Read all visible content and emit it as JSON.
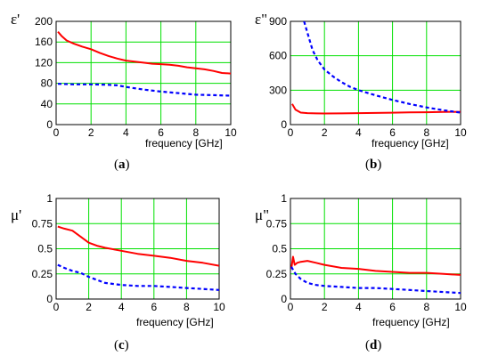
{
  "chart_data": [
    {
      "id": "a",
      "type": "line",
      "ylabel": "ε'",
      "xlabel": "frequency [GHz]",
      "caption_letter": "a",
      "xlim": [
        0,
        10
      ],
      "ylim": [
        0,
        200
      ],
      "xticks": [
        0,
        2,
        4,
        6,
        8,
        10
      ],
      "yticks": [
        0,
        40,
        80,
        120,
        160,
        200
      ],
      "ytick_labels": [
        "0",
        "40",
        "80",
        "120",
        "160",
        "200"
      ],
      "grid": true,
      "series": [
        {
          "color": "#ff0000",
          "style": "solid",
          "x": [
            0.1,
            0.3,
            0.6,
            1.0,
            1.5,
            2.0,
            2.5,
            3.0,
            3.5,
            4.0,
            4.5,
            5.0,
            5.5,
            6.0,
            6.5,
            7.0,
            7.5,
            8.0,
            8.5,
            9.0,
            9.5,
            10.0
          ],
          "y": [
            180,
            172,
            163,
            157,
            151,
            146,
            139,
            133,
            128,
            124,
            122,
            120,
            118,
            117,
            116,
            114,
            111,
            109,
            107,
            104,
            100,
            99
          ]
        },
        {
          "color": "#0000ff",
          "style": "dashed",
          "x": [
            0.1,
            1.0,
            2.0,
            3.0,
            3.5,
            4.0,
            5.0,
            6.0,
            7.0,
            8.0,
            9.0,
            10.0
          ],
          "y": [
            79,
            78,
            78,
            77,
            76,
            73,
            68,
            64,
            61,
            58,
            57,
            56
          ]
        }
      ]
    },
    {
      "id": "b",
      "type": "line",
      "ylabel": "ε\"",
      "xlabel": "frequency [GHz]",
      "caption_letter": "b",
      "xlim": [
        0,
        10
      ],
      "ylim": [
        0,
        900
      ],
      "xticks": [
        0,
        2,
        4,
        6,
        8,
        10
      ],
      "yticks": [
        0,
        300,
        600,
        900
      ],
      "ytick_labels": [
        "0",
        "300",
        "600",
        "900"
      ],
      "grid": true,
      "series": [
        {
          "color": "#ff0000",
          "style": "solid",
          "x": [
            0.1,
            0.3,
            0.6,
            1.0,
            1.5,
            2.0,
            3.0,
            4.0,
            5.0,
            6.0,
            7.0,
            8.0,
            9.0,
            10.0
          ],
          "y": [
            180,
            130,
            105,
            100,
            98,
            97,
            98,
            100,
            102,
            104,
            106,
            108,
            110,
            112
          ]
        },
        {
          "color": "#0000ff",
          "style": "dashed",
          "x": [
            0.8,
            1.0,
            1.3,
            1.6,
            2.0,
            2.5,
            3.0,
            3.5,
            4.0,
            5.0,
            6.0,
            7.0,
            8.0,
            9.0,
            10.0
          ],
          "y": [
            900,
            800,
            650,
            560,
            480,
            420,
            370,
            330,
            300,
            255,
            215,
            180,
            150,
            125,
            105
          ]
        }
      ]
    },
    {
      "id": "c",
      "type": "line",
      "ylabel": "μ'",
      "xlabel": "frequency [GHz]",
      "caption_letter": "c",
      "xlim": [
        0,
        10
      ],
      "ylim": [
        0,
        1
      ],
      "xticks": [
        0,
        2,
        4,
        6,
        8,
        10
      ],
      "yticks": [
        0,
        0.25,
        0.5,
        0.75,
        1
      ],
      "ytick_labels": [
        "0",
        "0.25",
        "0.5",
        "0.75",
        "1"
      ],
      "grid": true,
      "series": [
        {
          "color": "#ff0000",
          "style": "solid",
          "x": [
            0.1,
            0.5,
            1.0,
            1.5,
            2.0,
            2.5,
            3.0,
            4.0,
            5.0,
            6.0,
            7.0,
            8.0,
            9.0,
            10.0
          ],
          "y": [
            0.72,
            0.7,
            0.68,
            0.62,
            0.56,
            0.53,
            0.51,
            0.48,
            0.45,
            0.43,
            0.41,
            0.38,
            0.36,
            0.33
          ]
        },
        {
          "color": "#0000ff",
          "style": "dashed",
          "x": [
            0.1,
            0.5,
            1.0,
            1.5,
            2.0,
            2.5,
            3.0,
            4.0,
            5.0,
            6.0,
            7.0,
            8.0,
            9.0,
            10.0
          ],
          "y": [
            0.34,
            0.31,
            0.28,
            0.26,
            0.22,
            0.19,
            0.16,
            0.14,
            0.13,
            0.13,
            0.12,
            0.11,
            0.1,
            0.09
          ]
        }
      ]
    },
    {
      "id": "d",
      "type": "line",
      "ylabel": "μ\"",
      "xlabel": "frequency [GHz]",
      "caption_letter": "d",
      "xlim": [
        0,
        10
      ],
      "ylim": [
        0,
        1
      ],
      "xticks": [
        0,
        2,
        4,
        6,
        8,
        10
      ],
      "yticks": [
        0,
        0.25,
        0.5,
        0.75,
        1
      ],
      "ytick_labels": [
        "0",
        "0.25",
        "0.5",
        "0.75",
        "1"
      ],
      "grid": true,
      "series": [
        {
          "color": "#ff0000",
          "style": "solid",
          "x": [
            0.05,
            0.15,
            0.25,
            0.4,
            0.6,
            1.0,
            1.5,
            2.0,
            3.0,
            4.0,
            5.0,
            6.0,
            7.0,
            8.0,
            9.0,
            10.0
          ],
          "y": [
            0.3,
            0.42,
            0.34,
            0.36,
            0.37,
            0.38,
            0.36,
            0.34,
            0.31,
            0.3,
            0.28,
            0.27,
            0.26,
            0.26,
            0.25,
            0.24
          ]
        },
        {
          "color": "#0000ff",
          "style": "dashed",
          "x": [
            0.05,
            0.3,
            0.6,
            1.0,
            1.5,
            2.0,
            3.0,
            4.0,
            5.0,
            6.0,
            7.0,
            8.0,
            9.0,
            10.0
          ],
          "y": [
            0.32,
            0.25,
            0.2,
            0.16,
            0.14,
            0.13,
            0.12,
            0.11,
            0.11,
            0.1,
            0.09,
            0.08,
            0.07,
            0.06
          ]
        }
      ]
    }
  ]
}
